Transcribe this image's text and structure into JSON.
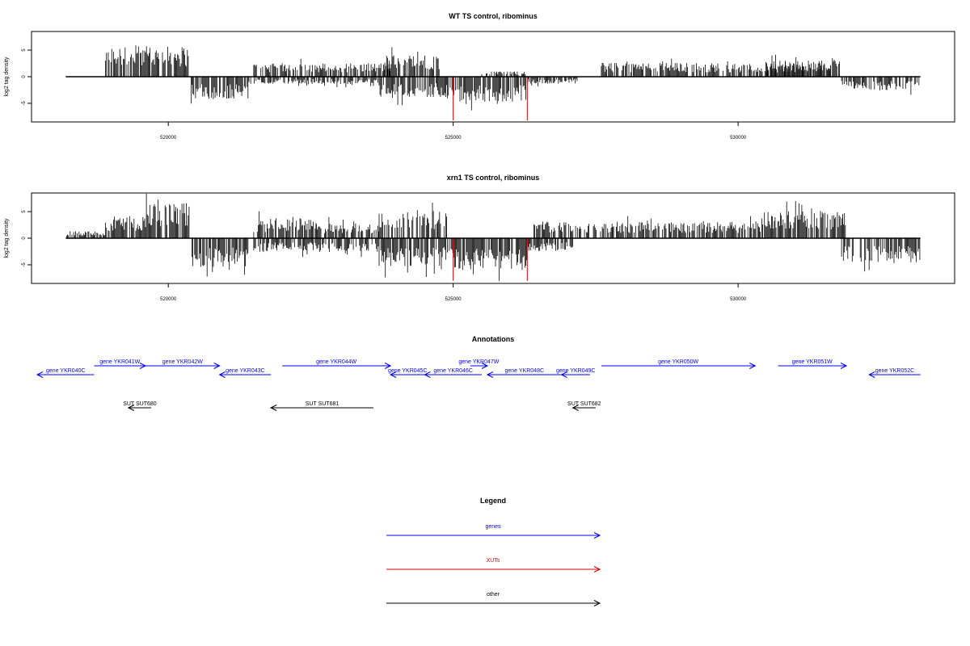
{
  "chart_data": [
    {
      "type": "bar",
      "title": "WT TS control, ribominus",
      "xlabel": "",
      "ylabel": "log2 tag density",
      "xlim": [
        517600,
        533800
      ],
      "ylim": [
        -8.5,
        8.5
      ],
      "xticks": [
        520000,
        525000,
        530000
      ],
      "xtick_labels": [
        "520000",
        "525000",
        "530000"
      ],
      "yticks": [
        5,
        0,
        -5
      ],
      "ytick_labels": [
        "5",
        "0",
        "-5"
      ],
      "baseline": [
        518200,
        533200
      ],
      "forward_blocks": [
        [
          518900,
          520400,
          5.2
        ],
        [
          521500,
          523900,
          2.3
        ],
        [
          523800,
          524800,
          3.8
        ],
        [
          525500,
          526300,
          0.9
        ],
        [
          527600,
          529800,
          2.4
        ],
        [
          529800,
          531700,
          2.2
        ],
        [
          530500,
          531800,
          2.8
        ]
      ],
      "reverse_blocks": [
        [
          520400,
          521400,
          4.0
        ],
        [
          521400,
          523700,
          1.3
        ],
        [
          523700,
          524900,
          3.5
        ],
        [
          524900,
          526300,
          4.4
        ],
        [
          526300,
          527200,
          1.2
        ],
        [
          531800,
          533200,
          2.3
        ]
      ],
      "highlight_lines": [
        [
          525000,
          -8.2
        ],
        [
          526300,
          -8.2
        ]
      ],
      "series": [
        {
          "name": "forward",
          "color": "#000000"
        },
        {
          "name": "reverse",
          "color": "#000000"
        },
        {
          "name": "highlight",
          "color": "#cc0000"
        }
      ]
    },
    {
      "type": "bar",
      "title": "xrn1 TS control, ribominus",
      "xlabel": "",
      "ylabel": "log2 tag density",
      "xlim": [
        517600,
        533800
      ],
      "ylim": [
        -8.5,
        8.5
      ],
      "xticks": [
        520000,
        525000,
        530000
      ],
      "xtick_labels": [
        "520000",
        "525000",
        "530000"
      ],
      "yticks": [
        5,
        0,
        -5
      ],
      "ytick_labels": [
        "5",
        "0",
        "-5"
      ],
      "baseline": [
        518200,
        533200
      ],
      "forward_blocks": [
        [
          518200,
          518900,
          1.2
        ],
        [
          518900,
          519600,
          3.8
        ],
        [
          519600,
          520400,
          6.0
        ],
        [
          521500,
          522600,
          3.3
        ],
        [
          522600,
          523700,
          2.6
        ],
        [
          523700,
          524900,
          4.8
        ],
        [
          526400,
          527800,
          3.0
        ],
        [
          527800,
          530400,
          2.8
        ],
        [
          530400,
          531900,
          4.8
        ]
      ],
      "reverse_blocks": [
        [
          520400,
          521400,
          5.0
        ],
        [
          521500,
          523700,
          2.3
        ],
        [
          523700,
          524900,
          4.8
        ],
        [
          524900,
          526300,
          5.5
        ],
        [
          526300,
          527100,
          2.2
        ],
        [
          531800,
          533200,
          4.2
        ]
      ],
      "highlight_lines": [
        [
          525000,
          -8.0
        ],
        [
          526300,
          -8.0
        ]
      ],
      "series": [
        {
          "name": "forward",
          "color": "#000000"
        },
        {
          "name": "reverse",
          "color": "#000000"
        },
        {
          "name": "highlight",
          "color": "#cc0000"
        }
      ]
    }
  ],
  "annotations": {
    "title": "Annotations",
    "features": [
      {
        "label": "gene YKR041W",
        "start": 518700,
        "end": 519600,
        "strand": "+",
        "color": "#0000ee"
      },
      {
        "label": "gene YKR040C",
        "start": 517700,
        "end": 518700,
        "strand": "-",
        "color": "#0000ee"
      },
      {
        "label": "gene YKR042W",
        "start": 519600,
        "end": 520900,
        "strand": "+",
        "color": "#0000ee"
      },
      {
        "label": "gene YKR043C",
        "start": 520900,
        "end": 521800,
        "strand": "-",
        "color": "#0000ee"
      },
      {
        "label": "gene YKR044W",
        "start": 522000,
        "end": 523900,
        "strand": "+",
        "color": "#0000ee"
      },
      {
        "label": "gene YKR045C",
        "start": 523900,
        "end": 524500,
        "strand": "-",
        "color": "#0000ee"
      },
      {
        "label": "gene YKR046C",
        "start": 524500,
        "end": 525500,
        "strand": "-",
        "color": "#0000ee"
      },
      {
        "label": "gene YKR047W",
        "start": 525300,
        "end": 525600,
        "strand": "+",
        "color": "#0000ee"
      },
      {
        "label": "gene YKR048C",
        "start": 525600,
        "end": 526900,
        "strand": "-",
        "color": "#0000ee"
      },
      {
        "label": "gene YKR049C",
        "start": 526900,
        "end": 527400,
        "strand": "-",
        "color": "#0000ee"
      },
      {
        "label": "gene YKR050W",
        "start": 527600,
        "end": 530300,
        "strand": "+",
        "color": "#0000ee"
      },
      {
        "label": "gene YKR051W",
        "start": 530700,
        "end": 531900,
        "strand": "+",
        "color": "#0000ee"
      },
      {
        "label": "gene YKR052C",
        "start": 532300,
        "end": 533200,
        "strand": "-",
        "color": "#0000ee"
      },
      {
        "label": "SUT SUT680",
        "start": 519300,
        "end": 519700,
        "strand": "-",
        "color": "#000000"
      },
      {
        "label": "SUT SUT681",
        "start": 521800,
        "end": 523600,
        "strand": "-",
        "color": "#000000"
      },
      {
        "label": "SUT SUT682",
        "start": 527100,
        "end": 527500,
        "strand": "-",
        "color": "#000000"
      }
    ]
  },
  "legend": {
    "title": "Legend",
    "items": [
      {
        "label": "genes",
        "color": "#0000ee"
      },
      {
        "label": "XUTs",
        "color": "#dd0000"
      },
      {
        "label": "other",
        "color": "#000000"
      }
    ]
  }
}
